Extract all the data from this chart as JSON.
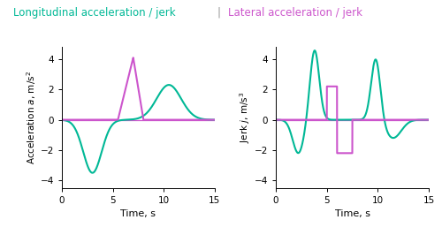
{
  "title_long": "Longitudinal acceleration / jerk",
  "title_lat": "Lateral acceleration / jerk",
  "title_sep": "|",
  "color_long": "#00b896",
  "color_lat": "#cc55cc",
  "xlim": [
    0,
    15
  ],
  "ylim_acc": [
    -4.5,
    4.8
  ],
  "ylim_jerk": [
    -4.5,
    4.8
  ],
  "yticks_acc": [
    -4,
    -2,
    0,
    2,
    4
  ],
  "yticks_jerk": [
    -4,
    -2,
    0,
    2,
    4
  ],
  "xticks": [
    0,
    5,
    10,
    15
  ],
  "xlabel": "Time, s",
  "background_color": "#ffffff",
  "long_acc_params": [
    {
      "mu": 3.0,
      "sigma": 0.9,
      "amp": -3.5
    },
    {
      "mu": 10.5,
      "sigma": 1.2,
      "amp": 2.3
    }
  ],
  "lat_acc_triangle": {
    "t_start": 5.5,
    "t_peak": 7.0,
    "t_end": 8.0,
    "amp": 4.1
  },
  "lat_jerk_rect1": {
    "t0": 5.0,
    "t1": 6.0,
    "val": 2.2
  },
  "lat_jerk_rect2": {
    "t0": 6.0,
    "t1": 7.5,
    "val": -2.2
  },
  "long_jerk_spikes": [
    {
      "mu": 2.2,
      "sigma": 0.55,
      "amp": -2.2
    },
    {
      "mu": 3.8,
      "sigma": 0.45,
      "amp": 4.6
    },
    {
      "mu": 9.8,
      "sigma": 0.45,
      "amp": 4.1
    },
    {
      "mu": 11.5,
      "sigma": 0.8,
      "amp": -1.2
    }
  ]
}
